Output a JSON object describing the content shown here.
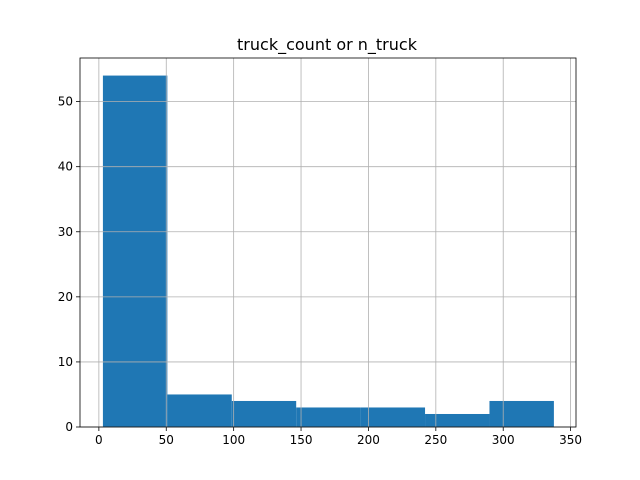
{
  "chart_data": {
    "type": "bar",
    "title": "truck_count or n_truck",
    "xlabel": "",
    "ylabel": "",
    "bin_edges": [
      3,
      50.8,
      98.6,
      146.4,
      194.2,
      242.0,
      289.8,
      337.6
    ],
    "counts": [
      54,
      5,
      4,
      3,
      3,
      2,
      4
    ],
    "xlim": [
      -14,
      354
    ],
    "ylim": [
      0,
      56.7
    ],
    "x_ticks": [
      "0",
      "50",
      "100",
      "150",
      "200",
      "250",
      "300",
      "350"
    ],
    "y_ticks": [
      "0",
      "10",
      "20",
      "30",
      "40",
      "50"
    ],
    "grid": true,
    "bar_color": "#1f77b4",
    "grid_color": "#b0b0b0"
  }
}
